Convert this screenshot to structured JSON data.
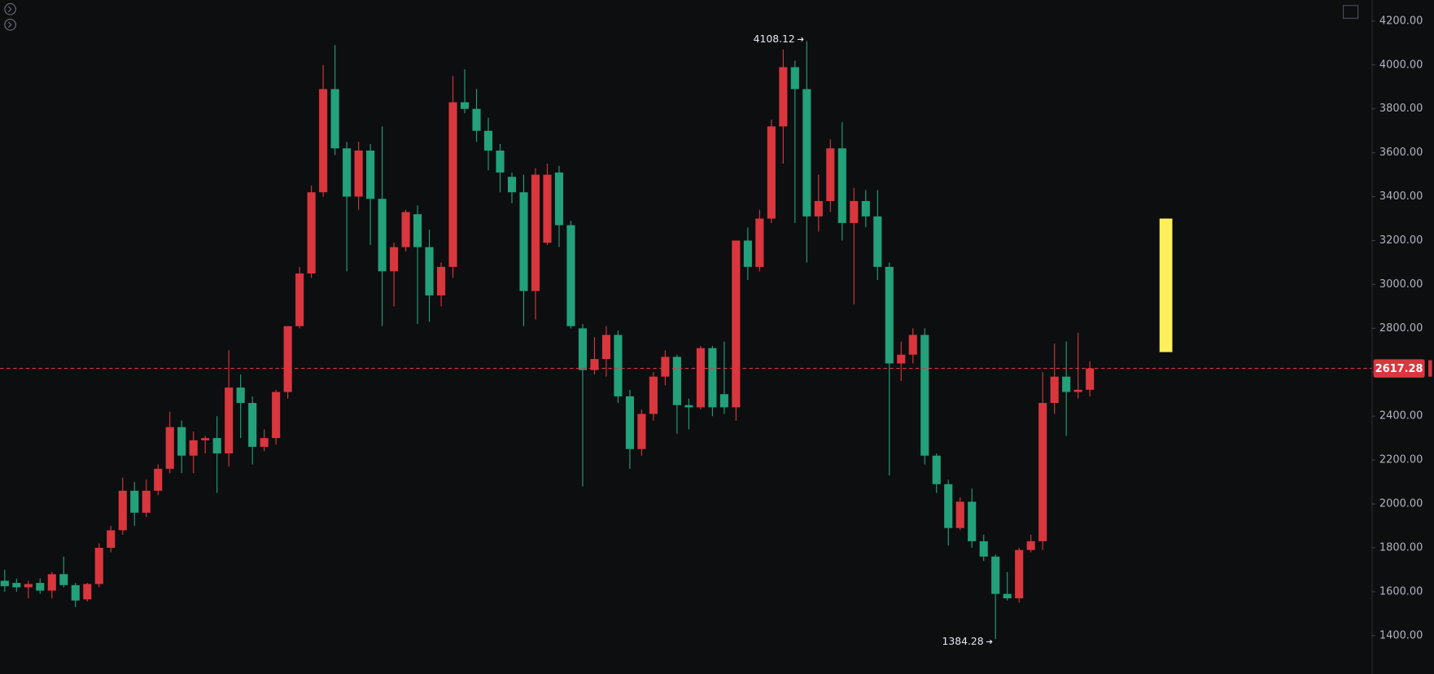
{
  "chart_data": {
    "type": "candlestick",
    "up_color": "#d9363e",
    "down_color": "#22a17a",
    "series": [
      {
        "open": [
          1650,
          1640,
          1620,
          1640,
          1605,
          1680,
          1630,
          1565,
          1635,
          1800,
          1880,
          2060,
          1960,
          2060,
          2160,
          2350,
          2220,
          2290,
          2300,
          2230,
          2530,
          2460,
          2260,
          2300,
          2510,
          2810,
          3050,
          3420,
          3890,
          3620,
          3400,
          3610,
          3390,
          3060,
          3170,
          3320,
          3170,
          2950,
          3080,
          3830,
          3800,
          3700,
          3610,
          3490,
          3420,
          2970,
          3190,
          3510,
          3270,
          2800,
          2610,
          2660,
          2770,
          2490,
          2250,
          2410,
          2580,
          2670,
          2450,
          2440,
          2710,
          2500,
          2440,
          3200,
          3080,
          3300,
          3720,
          3990,
          3890,
          3310,
          3380,
          3620,
          3280,
          3380,
          3310,
          3080,
          2640,
          2680,
          2770,
          2220,
          2090,
          1890,
          2010,
          1830,
          1760,
          1590,
          1570,
          1790,
          1830,
          2460,
          2580,
          2510,
          2520
        ],
        "high": [
          1700,
          1660,
          1650,
          1660,
          1690,
          1760,
          1640,
          1640,
          1820,
          1900,
          2120,
          2100,
          2110,
          2180,
          2420,
          2380,
          2330,
          2310,
          2400,
          2700,
          2590,
          2490,
          2340,
          2520,
          2810,
          3080,
          3450,
          4000,
          4090,
          3650,
          3650,
          3640,
          3720,
          3190,
          3340,
          3360,
          3250,
          3100,
          3950,
          3980,
          3890,
          3760,
          3640,
          3510,
          3500,
          3530,
          3550,
          3540,
          3290,
          2820,
          2760,
          2810,
          2790,
          2520,
          2430,
          2600,
          2700,
          2680,
          2480,
          2720,
          2720,
          2740,
          3200,
          3260,
          3340,
          3750,
          4070,
          4020,
          4108.12,
          3500,
          3660,
          3740,
          3440,
          3430,
          3430,
          3100,
          2740,
          2800,
          2800,
          2230,
          2110,
          2030,
          2070,
          1860,
          1770,
          1690,
          1800,
          1860,
          2600,
          2730,
          2740,
          2780,
          2650
        ],
        "low": [
          1600,
          1600,
          1570,
          1590,
          1570,
          1620,
          1530,
          1555,
          1620,
          1780,
          1860,
          1900,
          1940,
          2040,
          2140,
          2140,
          2140,
          2230,
          2050,
          2170,
          2300,
          2180,
          2240,
          2270,
          2480,
          2800,
          3030,
          3400,
          3590,
          3060,
          3340,
          3180,
          2810,
          2900,
          3150,
          2820,
          2830,
          2900,
          3030,
          3780,
          3650,
          3520,
          3420,
          3370,
          2810,
          2840,
          3180,
          3170,
          2800,
          2080,
          2590,
          2580,
          2460,
          2160,
          2220,
          2380,
          2540,
          2320,
          2340,
          2430,
          2400,
          2410,
          2380,
          3020,
          3060,
          3280,
          3550,
          3280,
          3100,
          3240,
          3330,
          3200,
          2910,
          3260,
          3020,
          2130,
          2560,
          2640,
          2180,
          2050,
          1810,
          1880,
          1800,
          1740,
          1384.28,
          1560,
          1550,
          1780,
          1790,
          2410,
          2310,
          2480,
          2490
        ],
        "close": [
          1625,
          1620,
          1635,
          1605,
          1680,
          1630,
          1560,
          1635,
          1800,
          1880,
          2060,
          1960,
          2060,
          2160,
          2350,
          2220,
          2290,
          2300,
          2230,
          2530,
          2460,
          2260,
          2300,
          2510,
          2810,
          3050,
          3420,
          3890,
          3620,
          3400,
          3610,
          3390,
          3060,
          3170,
          3330,
          3170,
          2950,
          3080,
          3830,
          3800,
          3700,
          3610,
          3510,
          3420,
          2970,
          3500,
          3500,
          3270,
          2810,
          2610,
          2660,
          2770,
          2490,
          2250,
          2410,
          2580,
          2670,
          2450,
          2440,
          2710,
          2440,
          2440,
          3200,
          3080,
          3300,
          3720,
          3990,
          3890,
          3310,
          3380,
          3620,
          3280,
          3380,
          3310,
          3080,
          2640,
          2680,
          2770,
          2220,
          2090,
          1890,
          2010,
          1830,
          1760,
          1590,
          1570,
          1790,
          1830,
          2460,
          2580,
          2510,
          2520,
          2617.28
        ]
      }
    ],
    "ylim": [
      1225,
      4296
    ],
    "yticks": [
      {
        "value": 1400,
        "label": "1400.00"
      },
      {
        "value": 1600,
        "label": "1600.00"
      },
      {
        "value": 1800,
        "label": "1800.00"
      },
      {
        "value": 2000,
        "label": "2000.00"
      },
      {
        "value": 2200,
        "label": "2200.00"
      },
      {
        "value": 2400,
        "label": "2400.00"
      },
      {
        "value": 2600,
        "label": "2600.00"
      },
      {
        "value": 2800,
        "label": "2800.00"
      },
      {
        "value": 3000,
        "label": "3000.00"
      },
      {
        "value": 3200,
        "label": "3200.00"
      },
      {
        "value": 3400,
        "label": "3400.00"
      },
      {
        "value": 3600,
        "label": "3600.00"
      },
      {
        "value": 3800,
        "label": "3800.00"
      },
      {
        "value": 4000,
        "label": "4000.00"
      },
      {
        "value": 4200,
        "label": "4200.00"
      }
    ],
    "price_line": true
  }
}
